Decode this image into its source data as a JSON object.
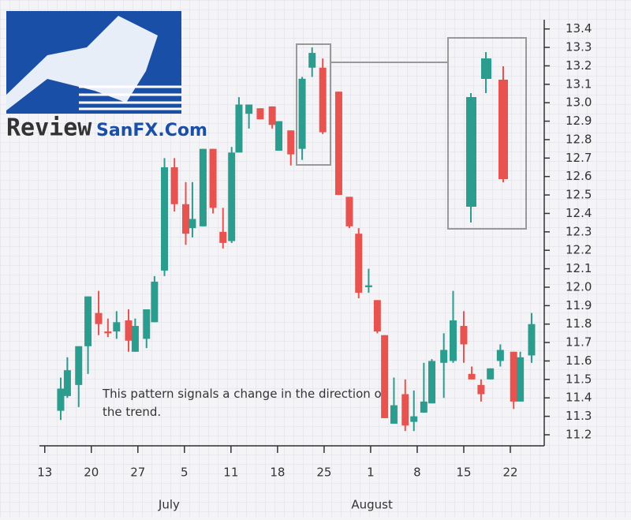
{
  "logo": {
    "line1": "Review",
    "line2": "SanFX.Com"
  },
  "chart_data": {
    "type": "candlestick",
    "annotation": "This pattern signals a change in the direction of the trend.",
    "up_color": "#2a9d8f",
    "down_color": "#e8524f",
    "x": [
      2.4,
      3.4,
      5.1,
      6.5,
      8.1,
      9.5,
      10.8,
      12.6,
      13.6,
      15.3,
      16.5,
      18.0,
      19.5,
      21.2,
      22.2,
      23.8,
      25.3,
      26.8,
      28.1,
      29.2,
      30.7,
      32.4,
      34.2,
      35.2,
      37.0,
      38.7,
      40.2,
      41.8,
      44.2,
      45.8,
      47.2,
      48.7,
      50.0,
      51.1,
      52.5,
      54.2,
      55.5,
      57.0,
      58.2,
      60.0,
      61.4,
      63.0,
      64.2,
      65.6,
      67.0,
      68.5,
      70.5,
      71.5,
      73.2
    ],
    "open": [
      11.33,
      11.41,
      11.47,
      11.68,
      11.86,
      11.76,
      11.76,
      11.82,
      11.65,
      11.72,
      11.81,
      12.09,
      12.65,
      12.45,
      12.32,
      12.33,
      12.75,
      12.3,
      12.25,
      12.73,
      12.94,
      12.97,
      12.98,
      12.74,
      12.85,
      12.75,
      13.19,
      13.19,
      13.06,
      12.49,
      12.29,
      12.0,
      11.93,
      11.74,
      11.26,
      11.42,
      11.27,
      11.32,
      11.37,
      11.59,
      11.6,
      11.79,
      11.53,
      11.47,
      11.5,
      11.6,
      11.65,
      11.38,
      11.63
    ],
    "high": [
      11.51,
      11.62,
      11.68,
      11.95,
      11.98,
      11.83,
      11.87,
      11.88,
      11.83,
      11.88,
      12.06,
      12.7,
      12.7,
      12.57,
      12.57,
      12.75,
      12.75,
      12.43,
      12.76,
      13.03,
      12.99,
      12.97,
      12.98,
      12.9,
      12.85,
      13.14,
      13.3,
      13.24,
      13.06,
      12.49,
      12.32,
      12.1,
      11.93,
      11.74,
      11.51,
      11.5,
      11.44,
      11.59,
      11.61,
      11.75,
      11.98,
      11.87,
      11.57,
      11.5,
      11.56,
      11.69,
      11.65,
      11.65,
      11.86
    ],
    "low": [
      11.28,
      11.4,
      11.35,
      11.53,
      11.74,
      11.73,
      11.72,
      11.65,
      11.65,
      11.67,
      11.81,
      12.06,
      12.41,
      12.23,
      12.27,
      12.33,
      12.4,
      12.21,
      12.24,
      12.73,
      12.86,
      12.91,
      12.86,
      12.74,
      12.66,
      12.69,
      13.14,
      12.83,
      12.5,
      12.32,
      11.94,
      11.97,
      11.75,
      11.29,
      11.26,
      11.22,
      11.22,
      11.32,
      11.37,
      11.4,
      11.59,
      11.59,
      11.5,
      11.38,
      11.5,
      11.57,
      11.34,
      11.38,
      11.59
    ],
    "close": [
      11.45,
      11.55,
      11.68,
      11.95,
      11.8,
      11.75,
      11.81,
      11.71,
      11.79,
      11.88,
      12.03,
      12.65,
      12.45,
      12.29,
      12.37,
      12.75,
      12.43,
      12.24,
      12.73,
      12.99,
      12.99,
      12.91,
      12.88,
      12.9,
      12.72,
      13.13,
      13.27,
      12.84,
      12.5,
      12.33,
      11.97,
      12.01,
      11.76,
      11.29,
      11.36,
      11.25,
      11.3,
      11.38,
      11.6,
      11.66,
      11.82,
      11.69,
      11.5,
      11.42,
      11.56,
      11.66,
      11.38,
      11.62,
      11.8
    ],
    "xlim": [
      -0.8,
      75.1
    ],
    "xticks": [
      {
        "value": 0,
        "label": "13"
      },
      {
        "value": 7,
        "label": "20"
      },
      {
        "value": 14,
        "label": "27"
      },
      {
        "value": 21,
        "label": "5"
      },
      {
        "value": 28,
        "label": "11"
      },
      {
        "value": 35,
        "label": "18"
      },
      {
        "value": 42,
        "label": "25"
      },
      {
        "value": 49,
        "label": "1"
      },
      {
        "value": 56,
        "label": "8"
      },
      {
        "value": 63,
        "label": "15"
      },
      {
        "value": 70,
        "label": "22"
      }
    ],
    "month_labels": [
      {
        "value": 18.7,
        "label": "July"
      },
      {
        "value": 49.2,
        "label": "August"
      }
    ],
    "ylim": [
      11.14,
      13.45
    ],
    "yticks": [
      11.2,
      11.3,
      11.4,
      11.5,
      11.6,
      11.7,
      11.8,
      11.9,
      {
        "value": 12,
        "label": "12.0"
      },
      12.1,
      12.2,
      12.3,
      12.4,
      12.5,
      12.6,
      12.7,
      12.8,
      12.9,
      {
        "value": 13,
        "label": "13.0"
      },
      13.1,
      13.2,
      13.3,
      13.4
    ]
  }
}
